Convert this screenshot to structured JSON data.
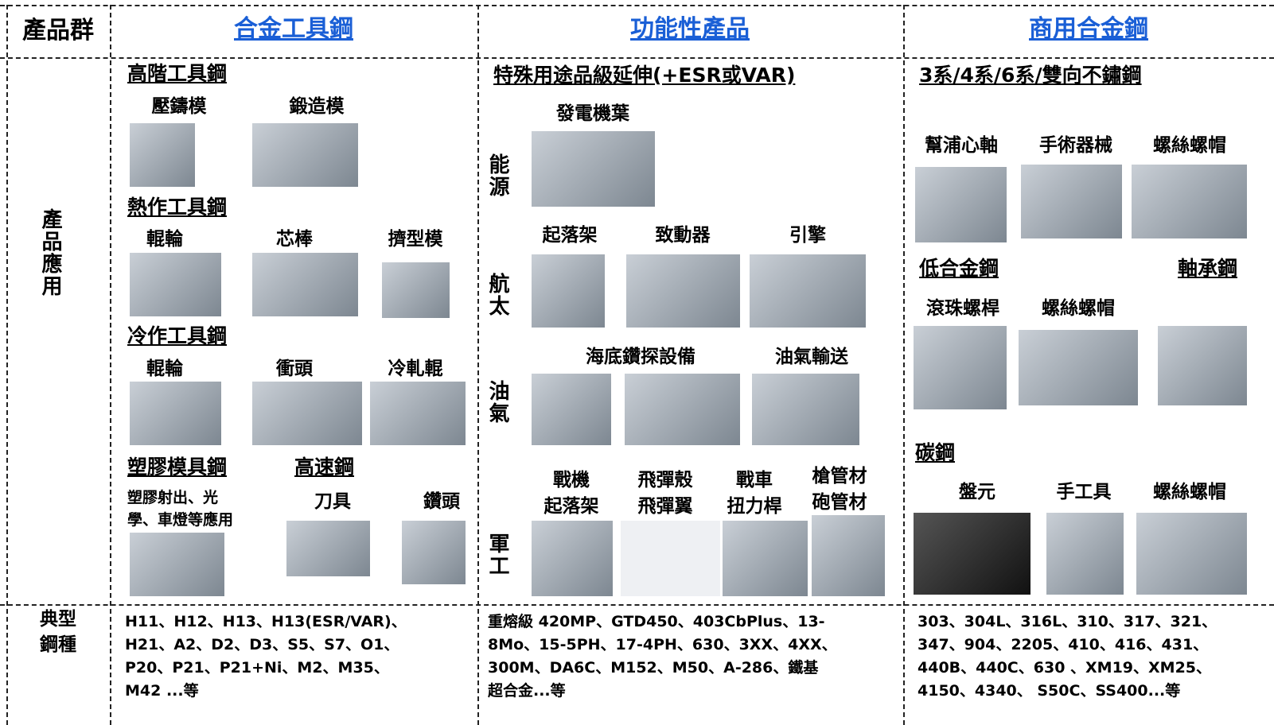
{
  "header": {
    "label": "產品群",
    "columns": [
      "合金工具鋼",
      "功能性產品",
      "商用合金鋼"
    ]
  },
  "row_label": "產品應用",
  "tool_steel": {
    "groups": [
      {
        "title": "高階工具鋼",
        "items": [
          "壓鑄模",
          "鍛造模"
        ]
      },
      {
        "title": "熱作工具鋼",
        "items": [
          "輥輪",
          "芯棒",
          "擠型模"
        ]
      },
      {
        "title": "冷作工具鋼",
        "items": [
          "輥輪",
          "衝頭",
          "冷軋輥"
        ]
      },
      {
        "title": "塑膠模具鋼",
        "note": [
          "塑膠射出、光",
          "學、車燈等應用"
        ]
      },
      {
        "title": "高速鋼",
        "items": [
          "刀具",
          "鑽頭"
        ]
      }
    ]
  },
  "functional": {
    "title": "特殊用途品級延伸(+ESR或VAR)",
    "sectors": [
      {
        "name": "能源",
        "items": [
          [
            "發電機葉"
          ]
        ]
      },
      {
        "name": "航太",
        "items": [
          [
            "起落架"
          ],
          [
            "致動器"
          ],
          [
            "引擎"
          ]
        ]
      },
      {
        "name": "油氣",
        "items": [
          [
            "海底鑽探設備"
          ],
          [
            "油氣輸送"
          ]
        ]
      },
      {
        "name": "軍工",
        "items": [
          [
            "戰機",
            "起落架"
          ],
          [
            "飛彈殼",
            "飛彈翼"
          ],
          [
            "戰車",
            "扭力桿"
          ],
          [
            "槍管材",
            "砲管材"
          ]
        ]
      }
    ]
  },
  "commercial": {
    "groups": [
      {
        "title": "3系/4系/6系/雙向不鏽鋼",
        "items": [
          "幫浦心軸",
          "手術器械",
          "螺絲螺帽"
        ]
      },
      {
        "title": "低合金鋼",
        "items": [
          "滾珠螺桿",
          "螺絲螺帽"
        ]
      },
      {
        "title": "軸承鋼"
      },
      {
        "title": "碳鋼",
        "items": [
          "盤元",
          "手工具",
          "螺絲螺帽"
        ]
      }
    ]
  },
  "typical": {
    "label": [
      "典型",
      "鋼種"
    ],
    "columns": [
      [
        "H11、H12、H13、H13(ESR/VAR)、",
        "H21、A2、D2、D3、S5、S7、O1、",
        "P20、P21、P21+Ni、M2、M35、",
        "M42 ...等"
      ],
      [
        "重熔級 420MP、GTD450、403CbPlus、13-",
        "8Mo、15-5PH、17-4PH、630、3XX、4XX、",
        "300M、DA6C、M152、M50、A-286、鐵基",
        "超合金...等"
      ],
      [
        "303、304L、316L、310、317、321、",
        "347、904、2205、410、416、431、",
        "440B、440C、630 、XM19、XM25、",
        "4150、4340、 S50C、SS400...等"
      ]
    ]
  }
}
